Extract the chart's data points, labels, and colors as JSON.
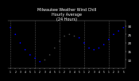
{
  "title": "Milwaukee Weather Wind Chill\nHourly Average\n(24 Hours)",
  "title_fontsize": 3.5,
  "background_color": "#000000",
  "plot_bg_color": "#000000",
  "dot_color": "#0000ff",
  "dot_color2": "#444444",
  "dot_size": 1.5,
  "x_values": [
    0,
    1,
    2,
    3,
    4,
    5,
    6,
    7,
    8,
    9,
    10,
    11,
    12,
    13,
    14,
    15,
    16,
    17,
    18,
    19,
    20,
    21,
    22,
    23
  ],
  "y_values": [
    29,
    25,
    20,
    16,
    13,
    11,
    9,
    10,
    13,
    17,
    21,
    24,
    25,
    24,
    23,
    20,
    17,
    16,
    17,
    19,
    22,
    25,
    27,
    29
  ],
  "ylim_min": 5,
  "ylim_max": 33,
  "ylabel_values": [
    10,
    15,
    20,
    25,
    30
  ],
  "grid_x_positions": [
    0,
    5,
    10,
    15,
    20
  ],
  "xlabel_ticks": [
    0,
    1,
    2,
    3,
    4,
    5,
    6,
    7,
    8,
    9,
    10,
    11,
    12,
    13,
    14,
    15,
    16,
    17,
    18,
    19,
    20,
    21,
    22,
    23
  ],
  "xlabel_labels": [
    "1",
    "2",
    "3",
    "4",
    "5",
    "1",
    "2",
    "3",
    "4",
    "5",
    "1",
    "2",
    "3",
    "4",
    "5",
    "1",
    "2",
    "3",
    "4",
    "5",
    "1",
    "2",
    "3",
    "5"
  ],
  "text_color": "#ffffff",
  "grid_color": "#888888",
  "spine_color": "#888888"
}
